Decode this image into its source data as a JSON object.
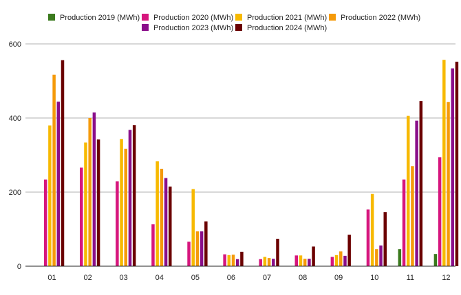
{
  "chart_data": {
    "type": "bar",
    "title": "",
    "xlabel": "",
    "ylabel": "",
    "categories": [
      "01",
      "02",
      "03",
      "04",
      "05",
      "06",
      "07",
      "08",
      "09",
      "10",
      "11",
      "12"
    ],
    "ylim": [
      0,
      600
    ],
    "yticks": [
      0,
      200,
      400,
      600
    ],
    "grid": "horizontal",
    "legend_position": "top",
    "series": [
      {
        "name": "Production 2019 (MWh)",
        "color": "#3b7a1e",
        "values": [
          null,
          null,
          null,
          null,
          null,
          null,
          null,
          null,
          null,
          null,
          46,
          33
        ]
      },
      {
        "name": "Production 2020 (MWh)",
        "color": "#d6167d",
        "values": [
          234,
          266,
          229,
          113,
          66,
          32,
          19,
          29,
          25,
          153,
          234,
          294
        ]
      },
      {
        "name": "Production 2021 (MWh)",
        "color": "#f7b900",
        "values": [
          380,
          334,
          343,
          283,
          208,
          30,
          25,
          29,
          30,
          195,
          406,
          557
        ]
      },
      {
        "name": "Production 2022 (MWh)",
        "color": "#f59a0a",
        "values": [
          517,
          400,
          317,
          263,
          94,
          31,
          22,
          20,
          40,
          46,
          270,
          443
        ]
      },
      {
        "name": "Production 2023 (MWh)",
        "color": "#8a0e8a",
        "values": [
          444,
          415,
          368,
          238,
          94,
          19,
          20,
          20,
          28,
          56,
          393,
          534
        ]
      },
      {
        "name": "Production 2024 (MWh)",
        "color": "#6b0000",
        "values": [
          556,
          342,
          381,
          215,
          121,
          39,
          74,
          53,
          85,
          146,
          446,
          552
        ]
      }
    ]
  }
}
